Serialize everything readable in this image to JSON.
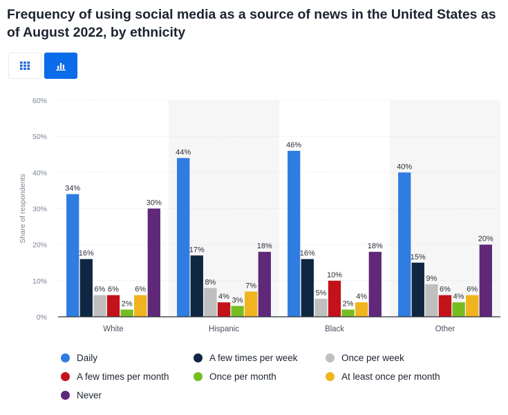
{
  "title": "Frequency of using social media as a source of news in the United States as of August 2022, by ethnicity",
  "toolbar": {
    "table_icon": "grid-icon",
    "chart_icon": "bar-chart-icon",
    "active_color": "#0b6be8"
  },
  "chart_data": {
    "type": "bar",
    "title": "Frequency of using social media as a source of news in the United States as of August 2022, by ethnicity",
    "xlabel": "",
    "ylabel": "Share of respondents",
    "ylim": [
      0,
      60
    ],
    "yticks": [
      0,
      10,
      20,
      30,
      40,
      50,
      60
    ],
    "ytick_labels": [
      "0%",
      "10%",
      "20%",
      "30%",
      "40%",
      "50%",
      "60%"
    ],
    "value_suffix": "%",
    "grid": true,
    "legend_position": "bottom",
    "categories": [
      "White",
      "Hispanic",
      "Black",
      "Other"
    ],
    "series": [
      {
        "name": "Daily",
        "color": "#2f7de1",
        "values": [
          34,
          44,
          46,
          40
        ]
      },
      {
        "name": "A few times per week",
        "color": "#0f2741",
        "values": [
          16,
          17,
          16,
          15
        ]
      },
      {
        "name": "Once per week",
        "color": "#bfbfbf",
        "values": [
          6,
          8,
          5,
          9
        ]
      },
      {
        "name": "A few times per month",
        "color": "#c4121a",
        "values": [
          6,
          4,
          10,
          6
        ]
      },
      {
        "name": "Once per month",
        "color": "#76bd22",
        "values": [
          2,
          3,
          2,
          4
        ]
      },
      {
        "name": "At least once per month",
        "color": "#f0b41e",
        "values": [
          6,
          7,
          4,
          6
        ]
      },
      {
        "name": "Never",
        "color": "#5f2879",
        "values": [
          30,
          18,
          18,
          20
        ]
      }
    ]
  }
}
